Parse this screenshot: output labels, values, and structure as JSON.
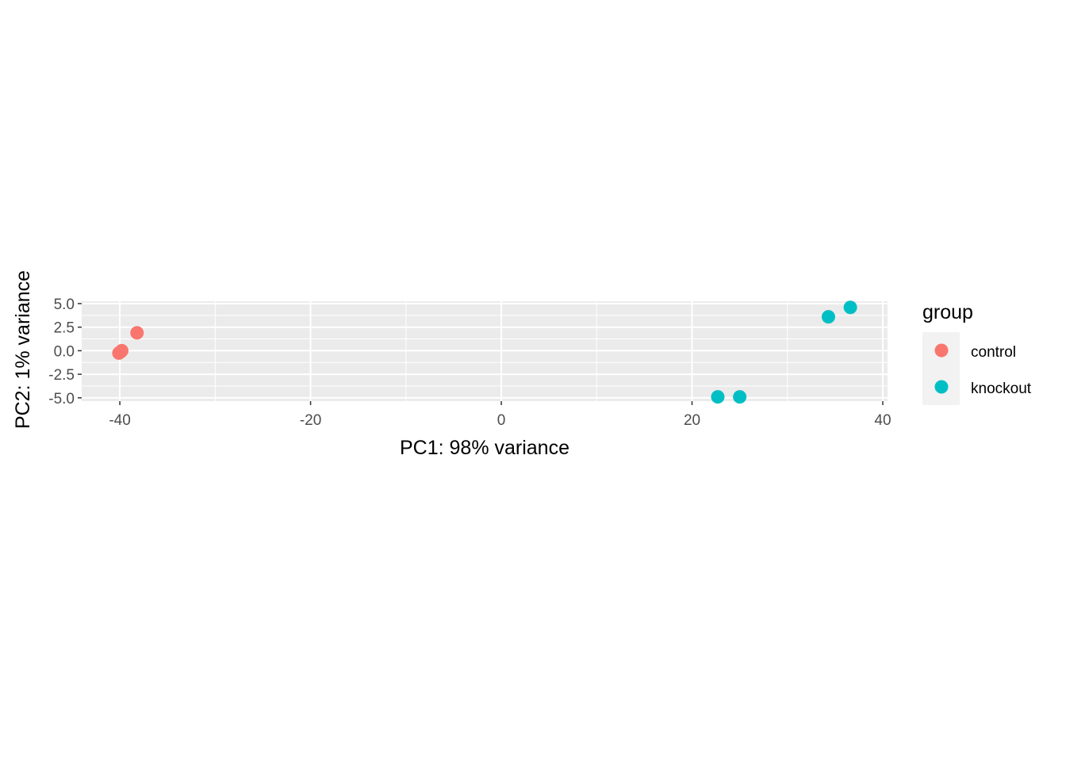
{
  "chart_data": {
    "type": "scatter",
    "xlabel": "PC1: 98% variance",
    "ylabel": "PC2: 1% variance",
    "xlim": [
      -44,
      40.5
    ],
    "ylim": [
      -5.35,
      5.25
    ],
    "x_ticks": [
      -40,
      -20,
      0,
      20,
      40
    ],
    "x_tick_labels": [
      "-40",
      "-20",
      "0",
      "20",
      "40"
    ],
    "x_minor_ticks": [
      -30,
      -10,
      10,
      30
    ],
    "y_ticks": [
      -5.0,
      -2.5,
      0.0,
      2.5,
      5.0
    ],
    "y_tick_labels": [
      "-5.0",
      "-2.5",
      "0.0",
      "2.5",
      "5.0"
    ],
    "y_minor_ticks": [
      -3.75,
      -1.25,
      1.25,
      3.75
    ],
    "grid": true,
    "panel_background": "#ebebeb",
    "grid_color": "#ffffff",
    "legend": {
      "title": "group",
      "placement": "right"
    },
    "series": [
      {
        "name": "control",
        "color": "#f8766d",
        "points": [
          {
            "x": -38.2,
            "y": 1.9
          },
          {
            "x": -39.9,
            "y": -0.1
          },
          {
            "x": -40.1,
            "y": -0.25
          },
          {
            "x": -39.8,
            "y": 0.0
          }
        ]
      },
      {
        "name": "knockout",
        "color": "#00bfc4",
        "points": [
          {
            "x": 36.6,
            "y": 4.6
          },
          {
            "x": 34.3,
            "y": 3.6
          },
          {
            "x": 22.7,
            "y": -4.9
          },
          {
            "x": 25.0,
            "y": -4.9
          }
        ]
      }
    ]
  }
}
